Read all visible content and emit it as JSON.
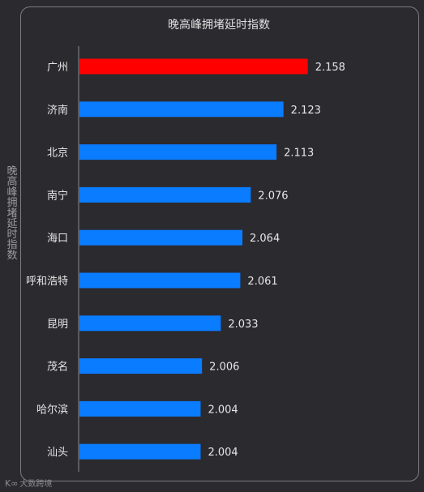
{
  "watermark": {
    "logo": "K∞",
    "text": "大数跨境"
  },
  "chart_data": {
    "type": "bar",
    "orientation": "horizontal",
    "title": "晚高峰拥堵延时指数",
    "xlabel": "",
    "ylabel": "晚高峰拥堵延时指数",
    "categories": [
      "广州",
      "济南",
      "北京",
      "南宁",
      "海口",
      "呼和浩特",
      "昆明",
      "茂名",
      "哈尔滨",
      "汕头"
    ],
    "values": [
      2.158,
      2.123,
      2.113,
      2.076,
      2.064,
      2.061,
      2.033,
      2.006,
      2.004,
      2.004
    ],
    "value_labels": [
      "2.158",
      "2.123",
      "2.113",
      "2.076",
      "2.064",
      "2.061",
      "2.033",
      "2.006",
      "2.004",
      "2.004"
    ],
    "xlim": [
      1.83,
      2.22
    ],
    "grid": false,
    "colors": {
      "highlight": "#ff0000",
      "bar": "#0a7cff"
    },
    "highlight_index": 0
  }
}
